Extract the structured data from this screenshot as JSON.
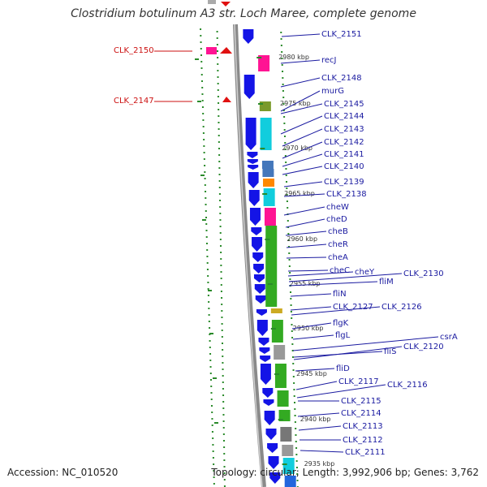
{
  "title": "Clostridium botulinum A3 str. Loch Maree, complete genome",
  "footer": {
    "accession": "Accession: NC_010520",
    "topology": "Topology: circular; Length: 3,992,906 bp; Genes: 3,762"
  },
  "colors": {
    "forward_gene": "#1414e6",
    "label_blue": "#1a1aa0",
    "label_red": "#cc1111",
    "backbone": "#8a8a8a",
    "gc_dots": "#2a8a2a",
    "cog_magenta": "#ff1493",
    "cog_green": "#33aa22",
    "cog_cyan": "#11cddd",
    "cog_olive": "#7a9a2a",
    "cog_orange": "#ff8800",
    "cog_gray": "#777777"
  },
  "ticks": [
    "2980 kbp",
    "2975 kbp",
    "2970 kbp",
    "2965 kbp",
    "2960 kbp",
    "2955 kbp",
    "2950 kbp",
    "2945 kbp",
    "2940 kbp",
    "2935 kbp"
  ],
  "labels_right": [
    "CLK_2151",
    "recJ",
    "CLK_2148",
    "murG",
    "CLK_2145",
    "CLK_2144",
    "CLK_2143",
    "CLK_2142",
    "CLK_2141",
    "CLK_2140",
    "CLK_2139",
    "CLK_2138",
    "cheW",
    "cheD",
    "cheB",
    "cheR",
    "cheA",
    "cheC",
    "cheY",
    "CLK_2130",
    "fliM",
    "fliN",
    "CLK_2127",
    "CLK_2126",
    "flgK",
    "flgL",
    "csrA",
    "CLK_2120",
    "fliS",
    "fliD",
    "CLK_2117",
    "CLK_2116",
    "CLK_2115",
    "CLK_2114",
    "CLK_2113",
    "CLK_2112",
    "CLK_2111"
  ],
  "labels_left": [
    "CLK_2150",
    "CLK_2147"
  ]
}
